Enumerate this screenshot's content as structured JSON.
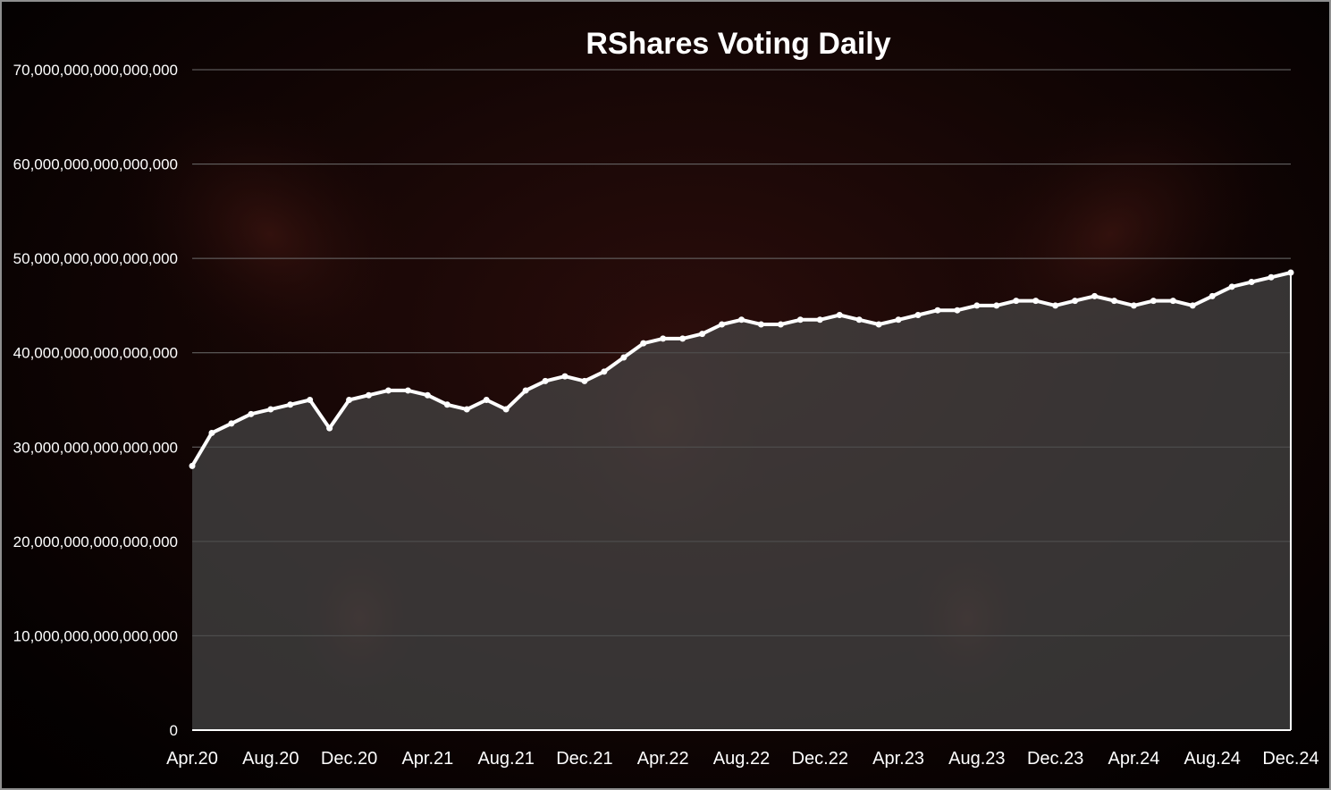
{
  "chart_data": {
    "type": "area",
    "title": "RShares Voting Daily",
    "xlabel": "",
    "ylabel": "",
    "ylim": [
      0,
      70000000000000000
    ],
    "y_ticks": [
      {
        "value": 0,
        "label": "0"
      },
      {
        "value": 10000000000000000,
        "label": "10,000,000,000,000,000"
      },
      {
        "value": 20000000000000000,
        "label": "20,000,000,000,000,000"
      },
      {
        "value": 30000000000000000,
        "label": "30,000,000,000,000,000"
      },
      {
        "value": 40000000000000000,
        "label": "40,000,000,000,000,000"
      },
      {
        "value": 50000000000000000,
        "label": "50,000,000,000,000,000"
      },
      {
        "value": 60000000000000000,
        "label": "60,000,000,000,000,000"
      },
      {
        "value": 70000000000000000,
        "label": "70,000,000,000,000,000"
      }
    ],
    "x_ticks": [
      "Apr.20",
      "Aug.20",
      "Dec.20",
      "Apr.21",
      "Aug.21",
      "Dec.21",
      "Apr.22",
      "Aug.22",
      "Dec.22",
      "Apr.23",
      "Aug.23",
      "Dec.23",
      "Apr.24",
      "Aug.24",
      "Dec.24"
    ],
    "grid": true,
    "legend": "none",
    "series": [
      {
        "color": "#ffffff",
        "fill": "rgba(70,70,70,0.72)",
        "x": [
          "Apr.20",
          "May.20",
          "Jun.20",
          "Jul.20",
          "Aug.20",
          "Sep.20",
          "Oct.20",
          "Nov.20",
          "Dec.20",
          "Jan.21",
          "Feb.21",
          "Mar.21",
          "Apr.21",
          "May.21",
          "Jun.21",
          "Jul.21",
          "Aug.21",
          "Sep.21",
          "Oct.21",
          "Nov.21",
          "Dec.21",
          "Jan.22",
          "Feb.22",
          "Mar.22",
          "Apr.22",
          "May.22",
          "Jun.22",
          "Jul.22",
          "Aug.22",
          "Sep.22",
          "Oct.22",
          "Nov.22",
          "Dec.22",
          "Jan.23",
          "Feb.23",
          "Mar.23",
          "Apr.23",
          "May.23",
          "Jun.23",
          "Jul.23",
          "Aug.23",
          "Sep.23",
          "Oct.23",
          "Nov.23",
          "Dec.23",
          "Jan.24",
          "Feb.24",
          "Mar.24",
          "Apr.24",
          "May.24",
          "Jun.24",
          "Jul.24",
          "Aug.24",
          "Sep.24",
          "Oct.24",
          "Nov.24",
          "Dec.24"
        ],
        "values": [
          28000000000000000,
          31500000000000000,
          32500000000000000,
          33500000000000000,
          34000000000000000,
          34500000000000000,
          35000000000000000,
          32000000000000000,
          35000000000000000,
          35500000000000000,
          36000000000000000,
          36000000000000000,
          35500000000000000,
          34500000000000000,
          34000000000000000,
          35000000000000000,
          34000000000000000,
          36000000000000000,
          37000000000000000,
          37500000000000000,
          37000000000000000,
          38000000000000000,
          39500000000000000,
          41000000000000000,
          41500000000000000,
          41500000000000000,
          42000000000000000,
          43000000000000000,
          43500000000000000,
          43000000000000000,
          43000000000000000,
          43500000000000000,
          43500000000000000,
          44000000000000000,
          43500000000000000,
          43000000000000000,
          43500000000000000,
          44000000000000000,
          44500000000000000,
          44500000000000000,
          45000000000000000,
          45000000000000000,
          45500000000000000,
          45500000000000000,
          45000000000000000,
          45500000000000000,
          46000000000000000,
          45500000000000000,
          45000000000000000,
          45500000000000000,
          45500000000000000,
          45000000000000000,
          46000000000000000,
          47000000000000000,
          47500000000000000,
          48000000000000000,
          48500000000000000
        ]
      }
    ]
  }
}
